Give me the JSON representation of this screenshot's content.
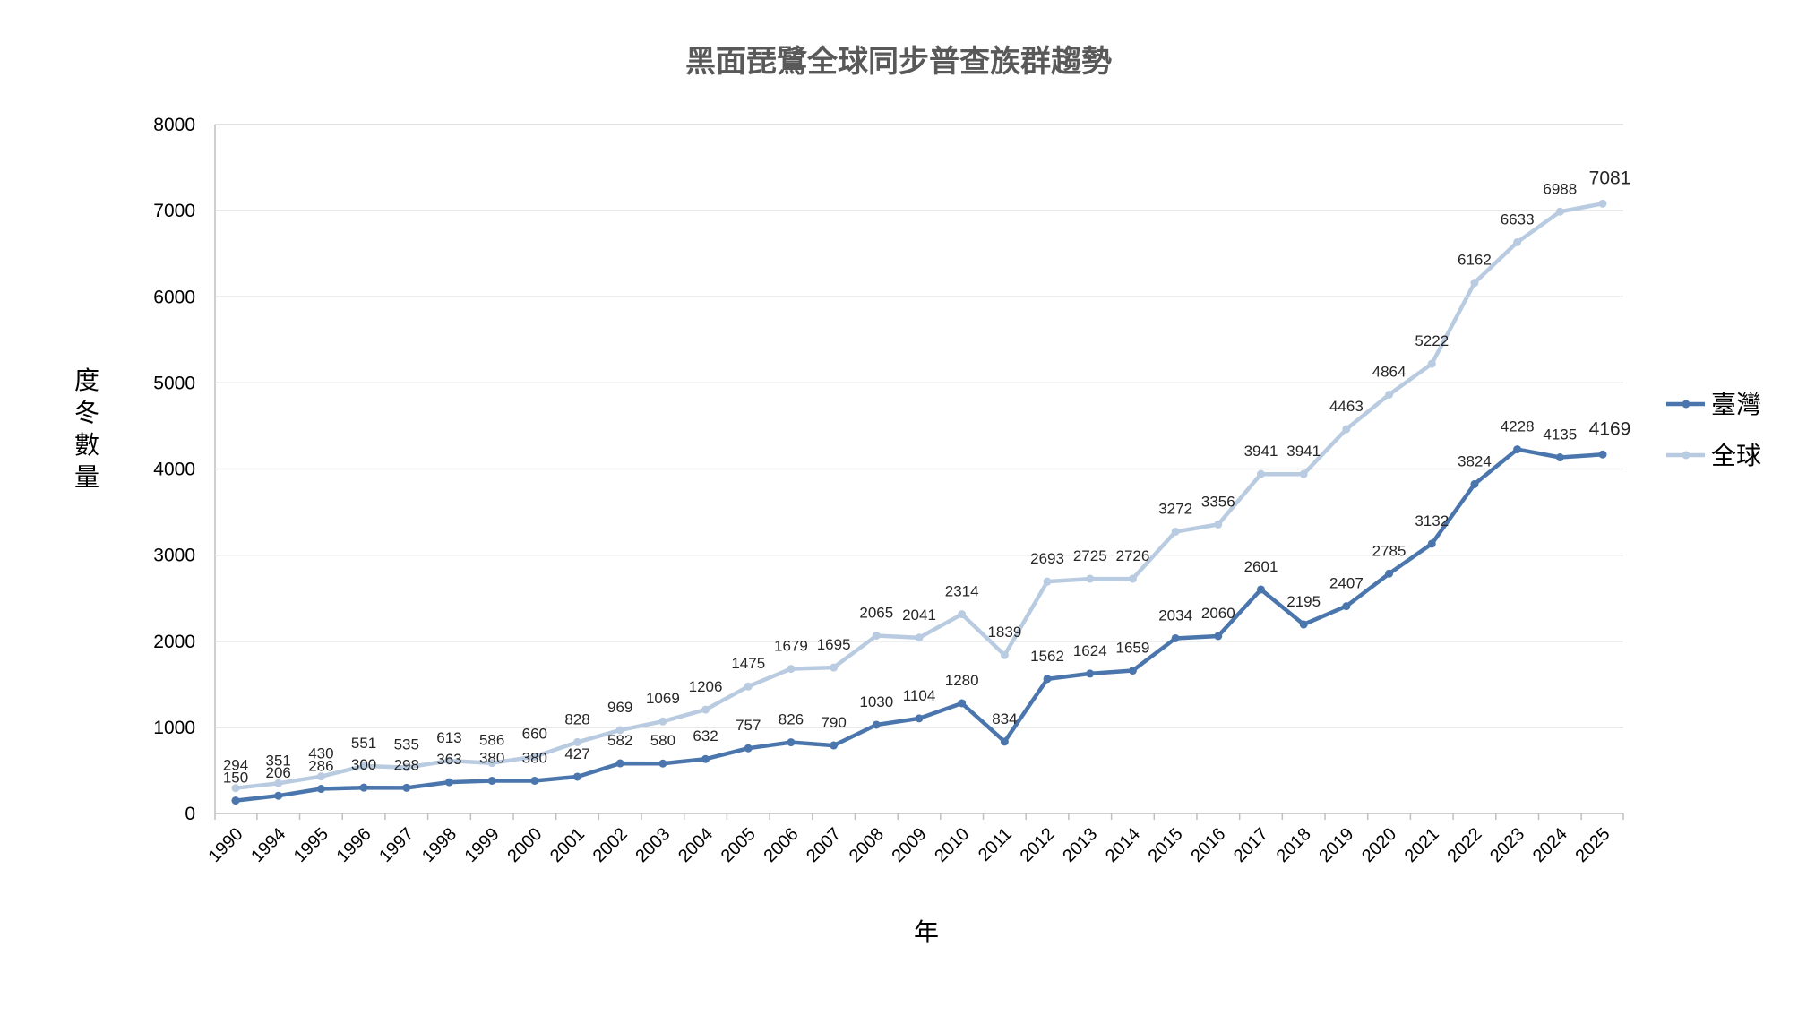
{
  "chart_data": {
    "type": "line",
    "title": "黑面琵鷺全球同步普查族群趨勢",
    "xlabel": "年",
    "ylabel": "度冬數量",
    "ylim": [
      0,
      8000
    ],
    "yticks": [
      0,
      1000,
      2000,
      3000,
      4000,
      5000,
      6000,
      7000,
      8000
    ],
    "grid": true,
    "legend_position": "right",
    "categories": [
      "1990",
      "1994",
      "1995",
      "1996",
      "1997",
      "1998",
      "1999",
      "2000",
      "2001",
      "2002",
      "2003",
      "2004",
      "2005",
      "2006",
      "2007",
      "2008",
      "2009",
      "2010",
      "2011",
      "2012",
      "2013",
      "2014",
      "2015",
      "2016",
      "2017",
      "2018",
      "2019",
      "2020",
      "2021",
      "2022",
      "2023",
      "2024",
      "2025"
    ],
    "series": [
      {
        "name": "臺灣",
        "color": "#4a76ad",
        "values": [
          150,
          206,
          286,
          300,
          298,
          363,
          380,
          380,
          427,
          582,
          580,
          632,
          757,
          826,
          790,
          1030,
          1104,
          1280,
          834,
          1562,
          1624,
          1659,
          2034,
          2060,
          2601,
          2195,
          2407,
          2785,
          3132,
          3824,
          4228,
          4135,
          4169
        ]
      },
      {
        "name": "全球",
        "color": "#b9cbe0",
        "values": [
          294,
          351,
          430,
          551,
          535,
          613,
          586,
          660,
          828,
          969,
          1069,
          1206,
          1475,
          1679,
          1695,
          2065,
          2041,
          2314,
          1839,
          2693,
          2725,
          2726,
          3272,
          3356,
          3941,
          3941,
          4463,
          4864,
          5222,
          6162,
          6633,
          6988,
          7081
        ]
      }
    ]
  }
}
